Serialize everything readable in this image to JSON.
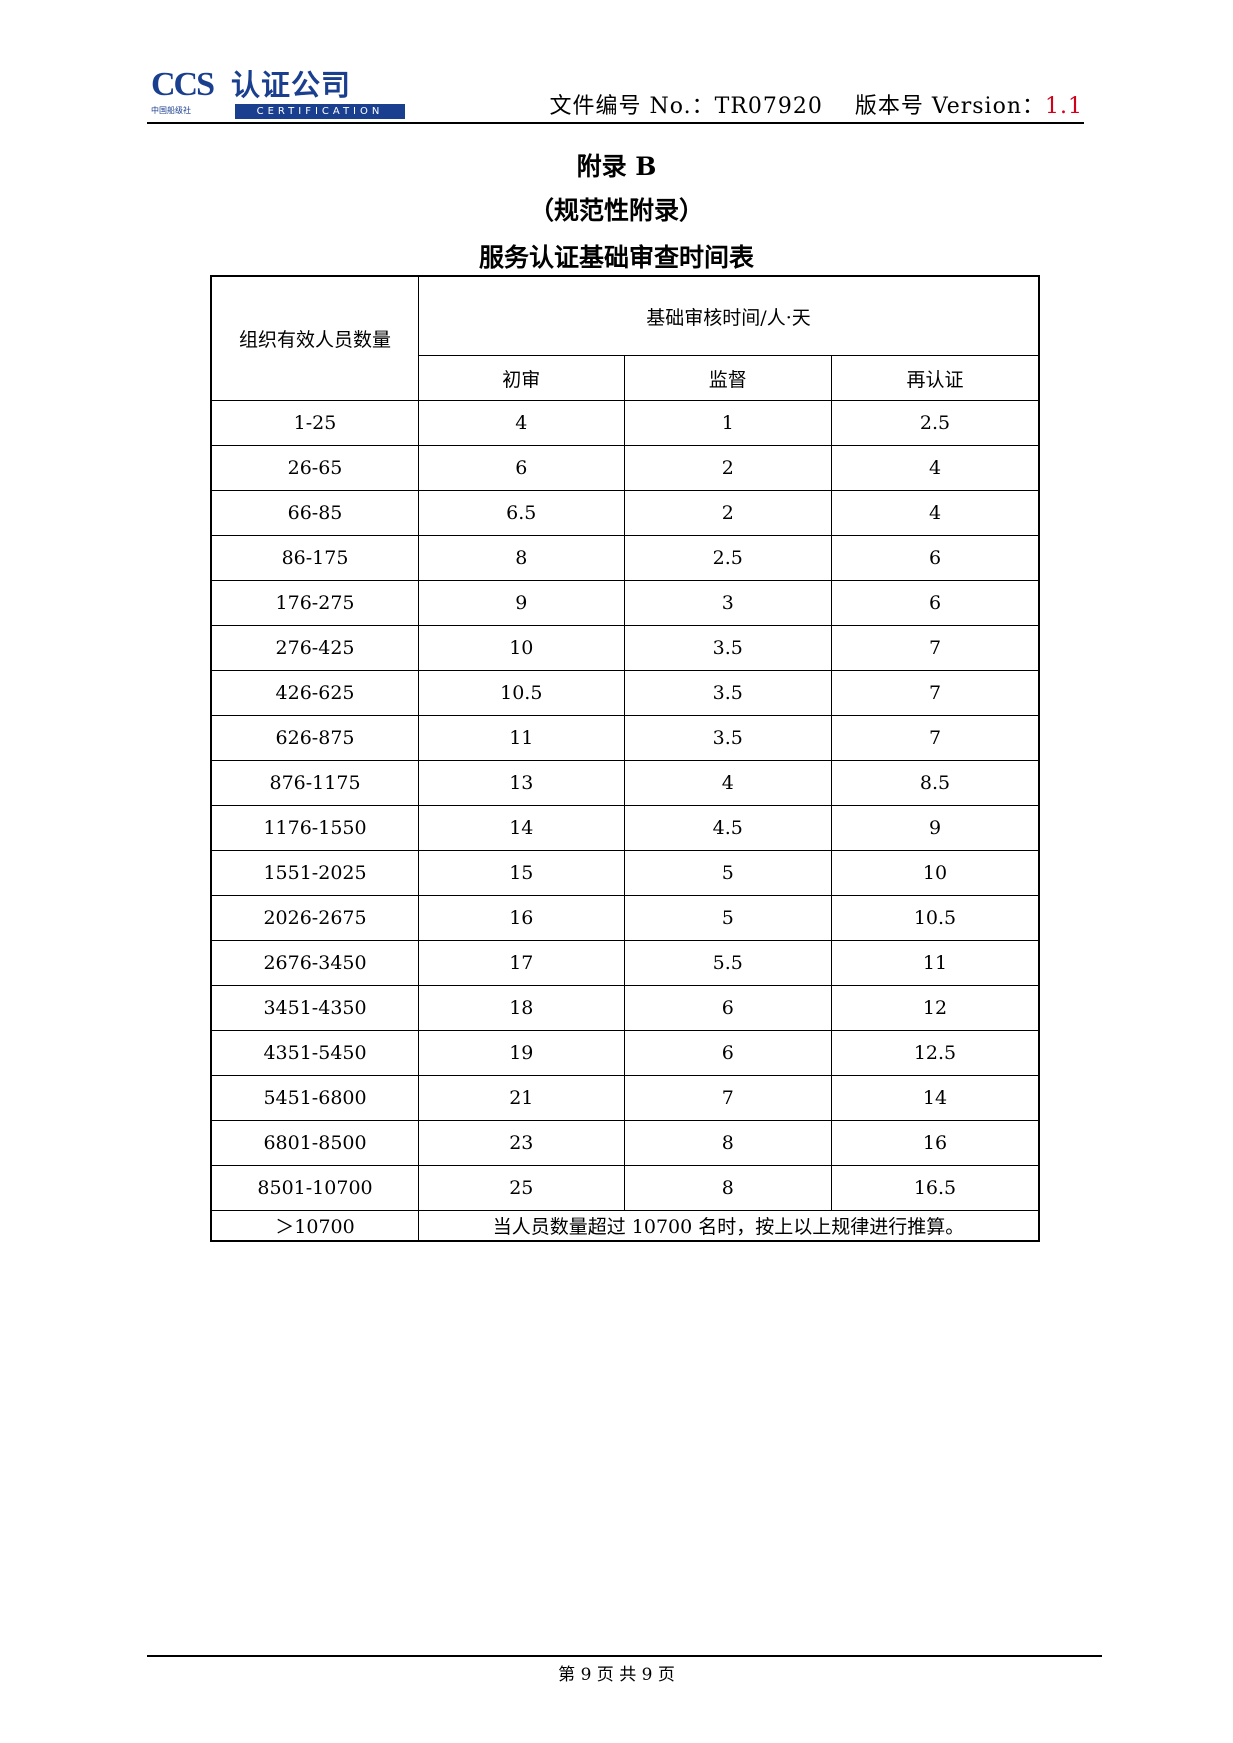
{
  "header": {
    "logo": {
      "ccs": "CCS",
      "name": "认证公司",
      "subtitle": "中国船级社",
      "certification": "CERTIFICATION"
    },
    "doc_number_label": "文件编号 No.：",
    "doc_number": "TR07920",
    "version_label": "版本号 Version：",
    "version": "1.1",
    "version_color": "#d0021b"
  },
  "titles": [
    "附录 B",
    "（规范性附录）",
    "服务认证基础审查时间表"
  ],
  "table": {
    "row_header": "组织有效人员数量",
    "group_header": "基础审核时间/人·天",
    "columns": [
      "初审",
      "监督",
      "再认证"
    ],
    "rows": [
      [
        "1-25",
        "4",
        "1",
        "2.5"
      ],
      [
        "26-65",
        "6",
        "2",
        "4"
      ],
      [
        "66-85",
        "6.5",
        "2",
        "4"
      ],
      [
        "86-175",
        "8",
        "2.5",
        "6"
      ],
      [
        "176-275",
        "9",
        "3",
        "6"
      ],
      [
        "276-425",
        "10",
        "3.5",
        "7"
      ],
      [
        "426-625",
        "10.5",
        "3.5",
        "7"
      ],
      [
        "626-875",
        "11",
        "3.5",
        "7"
      ],
      [
        "876-1175",
        "13",
        "4",
        "8.5"
      ],
      [
        "1176-1550",
        "14",
        "4.5",
        "9"
      ],
      [
        "1551-2025",
        "15",
        "5",
        "10"
      ],
      [
        "2026-2675",
        "16",
        "5",
        "10.5"
      ],
      [
        "2676-3450",
        "17",
        "5.5",
        "11"
      ],
      [
        "3451-4350",
        "18",
        "6",
        "12"
      ],
      [
        "4351-5450",
        "19",
        "6",
        "12.5"
      ],
      [
        "5451-6800",
        "21",
        "7",
        "14"
      ],
      [
        "6801-8500",
        "23",
        "8",
        "16"
      ],
      [
        "8501-10700",
        "25",
        "8",
        "16.5"
      ]
    ],
    "last_row": {
      "range": "＞10700",
      "note": "当人员数量超过 10700 名时，按上以上规律进行推算。"
    }
  },
  "footer": {
    "page": "第 9 页 共 9 页"
  }
}
